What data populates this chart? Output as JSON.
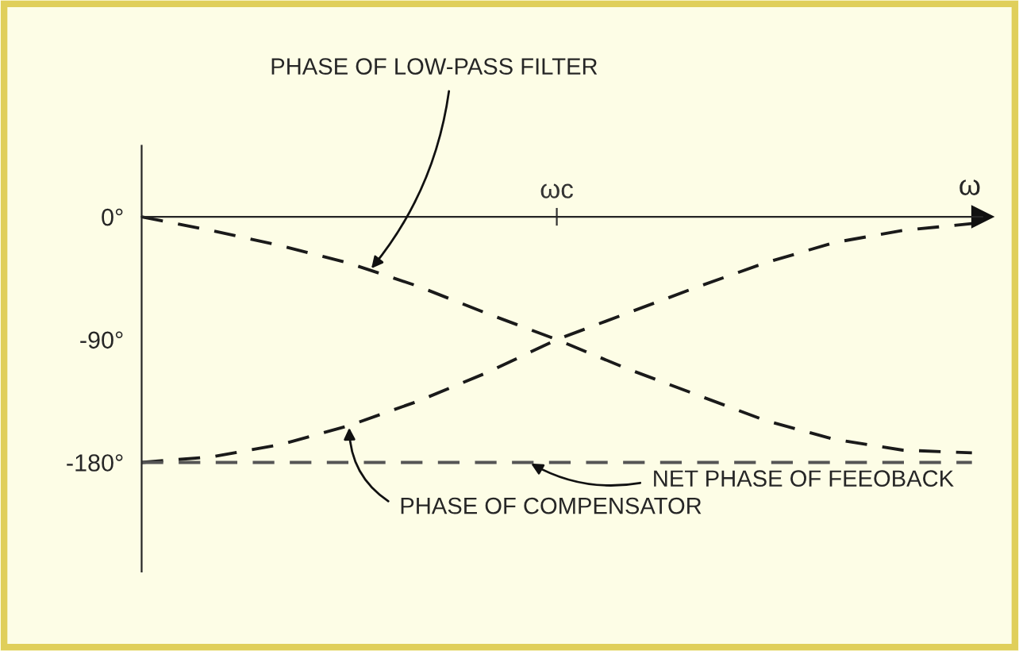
{
  "chart_data": {
    "type": "line",
    "categories": [
      null,
      null,
      null,
      null,
      null,
      null,
      "ωc",
      null,
      null,
      null,
      null,
      null,
      null
    ],
    "xlabel": "ω",
    "series": [
      {
        "color": "#1a1a1a",
        "line_style": "dashed",
        "values": [
          0,
          -10,
          -21,
          -34,
          -51,
          -71,
          -90,
          -111,
          -130,
          -149,
          -163,
          -171,
          -173
        ]
      },
      {
        "color": "#1a1a1a",
        "line_style": "dashed",
        "values": [
          -180,
          -176,
          -167,
          -153,
          -135,
          -114,
          -90,
          -71,
          -52,
          -34,
          -19,
          -10,
          -5
        ]
      },
      {
        "color": "#555555",
        "line_style": "dashed",
        "values": [
          -180,
          -180,
          -180,
          -180,
          -180,
          -180,
          -180,
          -180,
          -180,
          -180,
          -180,
          -180,
          -180
        ]
      }
    ],
    "ylim": [
      -260,
      52
    ],
    "yticks": [
      {
        "value": 0,
        "label": "0°"
      },
      {
        "value": -90,
        "label": "-90°"
      },
      {
        "value": -180,
        "label": "-180°"
      }
    ],
    "annotations": [
      "PHASE OF LOW-PASS FILTER",
      "PHASE OF COMPENSATOR",
      "NET PHASE OF FEEOBACK"
    ],
    "grid": false,
    "marker": "none"
  }
}
